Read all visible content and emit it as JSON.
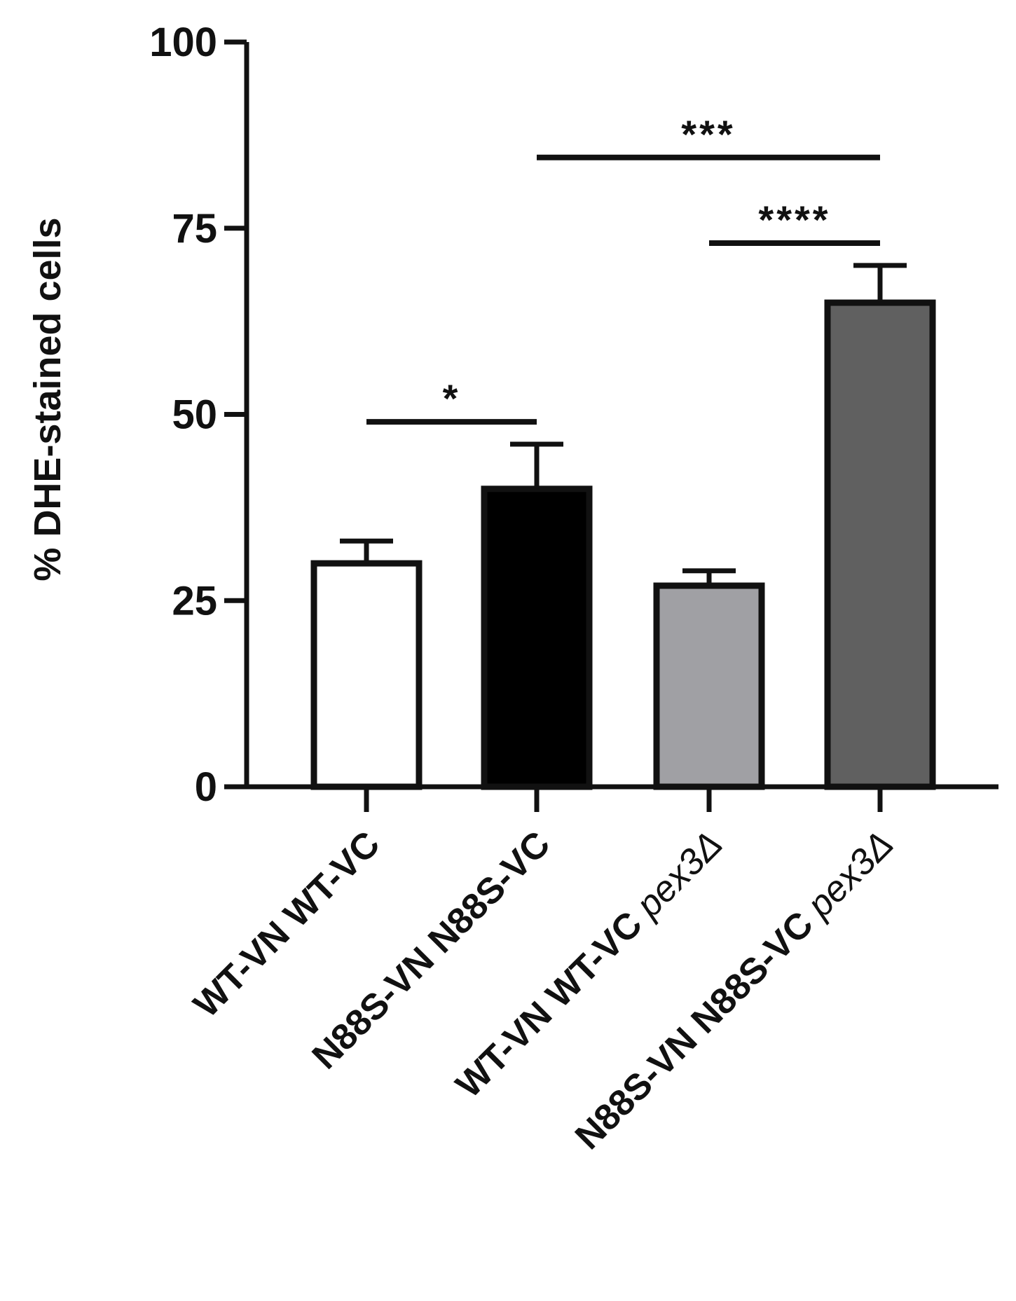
{
  "chart_data": {
    "type": "bar",
    "title": "",
    "xlabel": "",
    "ylabel": "% DHE-stained cells",
    "ylim": [
      0,
      100
    ],
    "yticks": [
      "0",
      "25",
      "50",
      "75",
      "100"
    ],
    "categories": [
      {
        "prefix": "WT-VN WT-VC",
        "suffix": ""
      },
      {
        "prefix": "N88S-VN N88S-VC",
        "suffix": ""
      },
      {
        "prefix": "WT-VN WT-VC ",
        "suffix": "pex3Δ"
      },
      {
        "prefix": "N88S-VN N88S-VC ",
        "suffix": "pex3Δ"
      }
    ],
    "values": [
      30,
      40,
      27,
      65
    ],
    "errors": [
      3,
      6,
      2,
      5
    ],
    "colors": [
      "#ffffff",
      "#000000",
      "#a0a0a4",
      "#606060"
    ],
    "grid": false,
    "significance": [
      {
        "from": 0,
        "to": 1,
        "y": 49,
        "label": "*"
      },
      {
        "from": 1,
        "to": 3,
        "y": 84.5,
        "label": "***"
      },
      {
        "from": 2,
        "to": 3,
        "y": 73,
        "label": "****"
      }
    ]
  }
}
